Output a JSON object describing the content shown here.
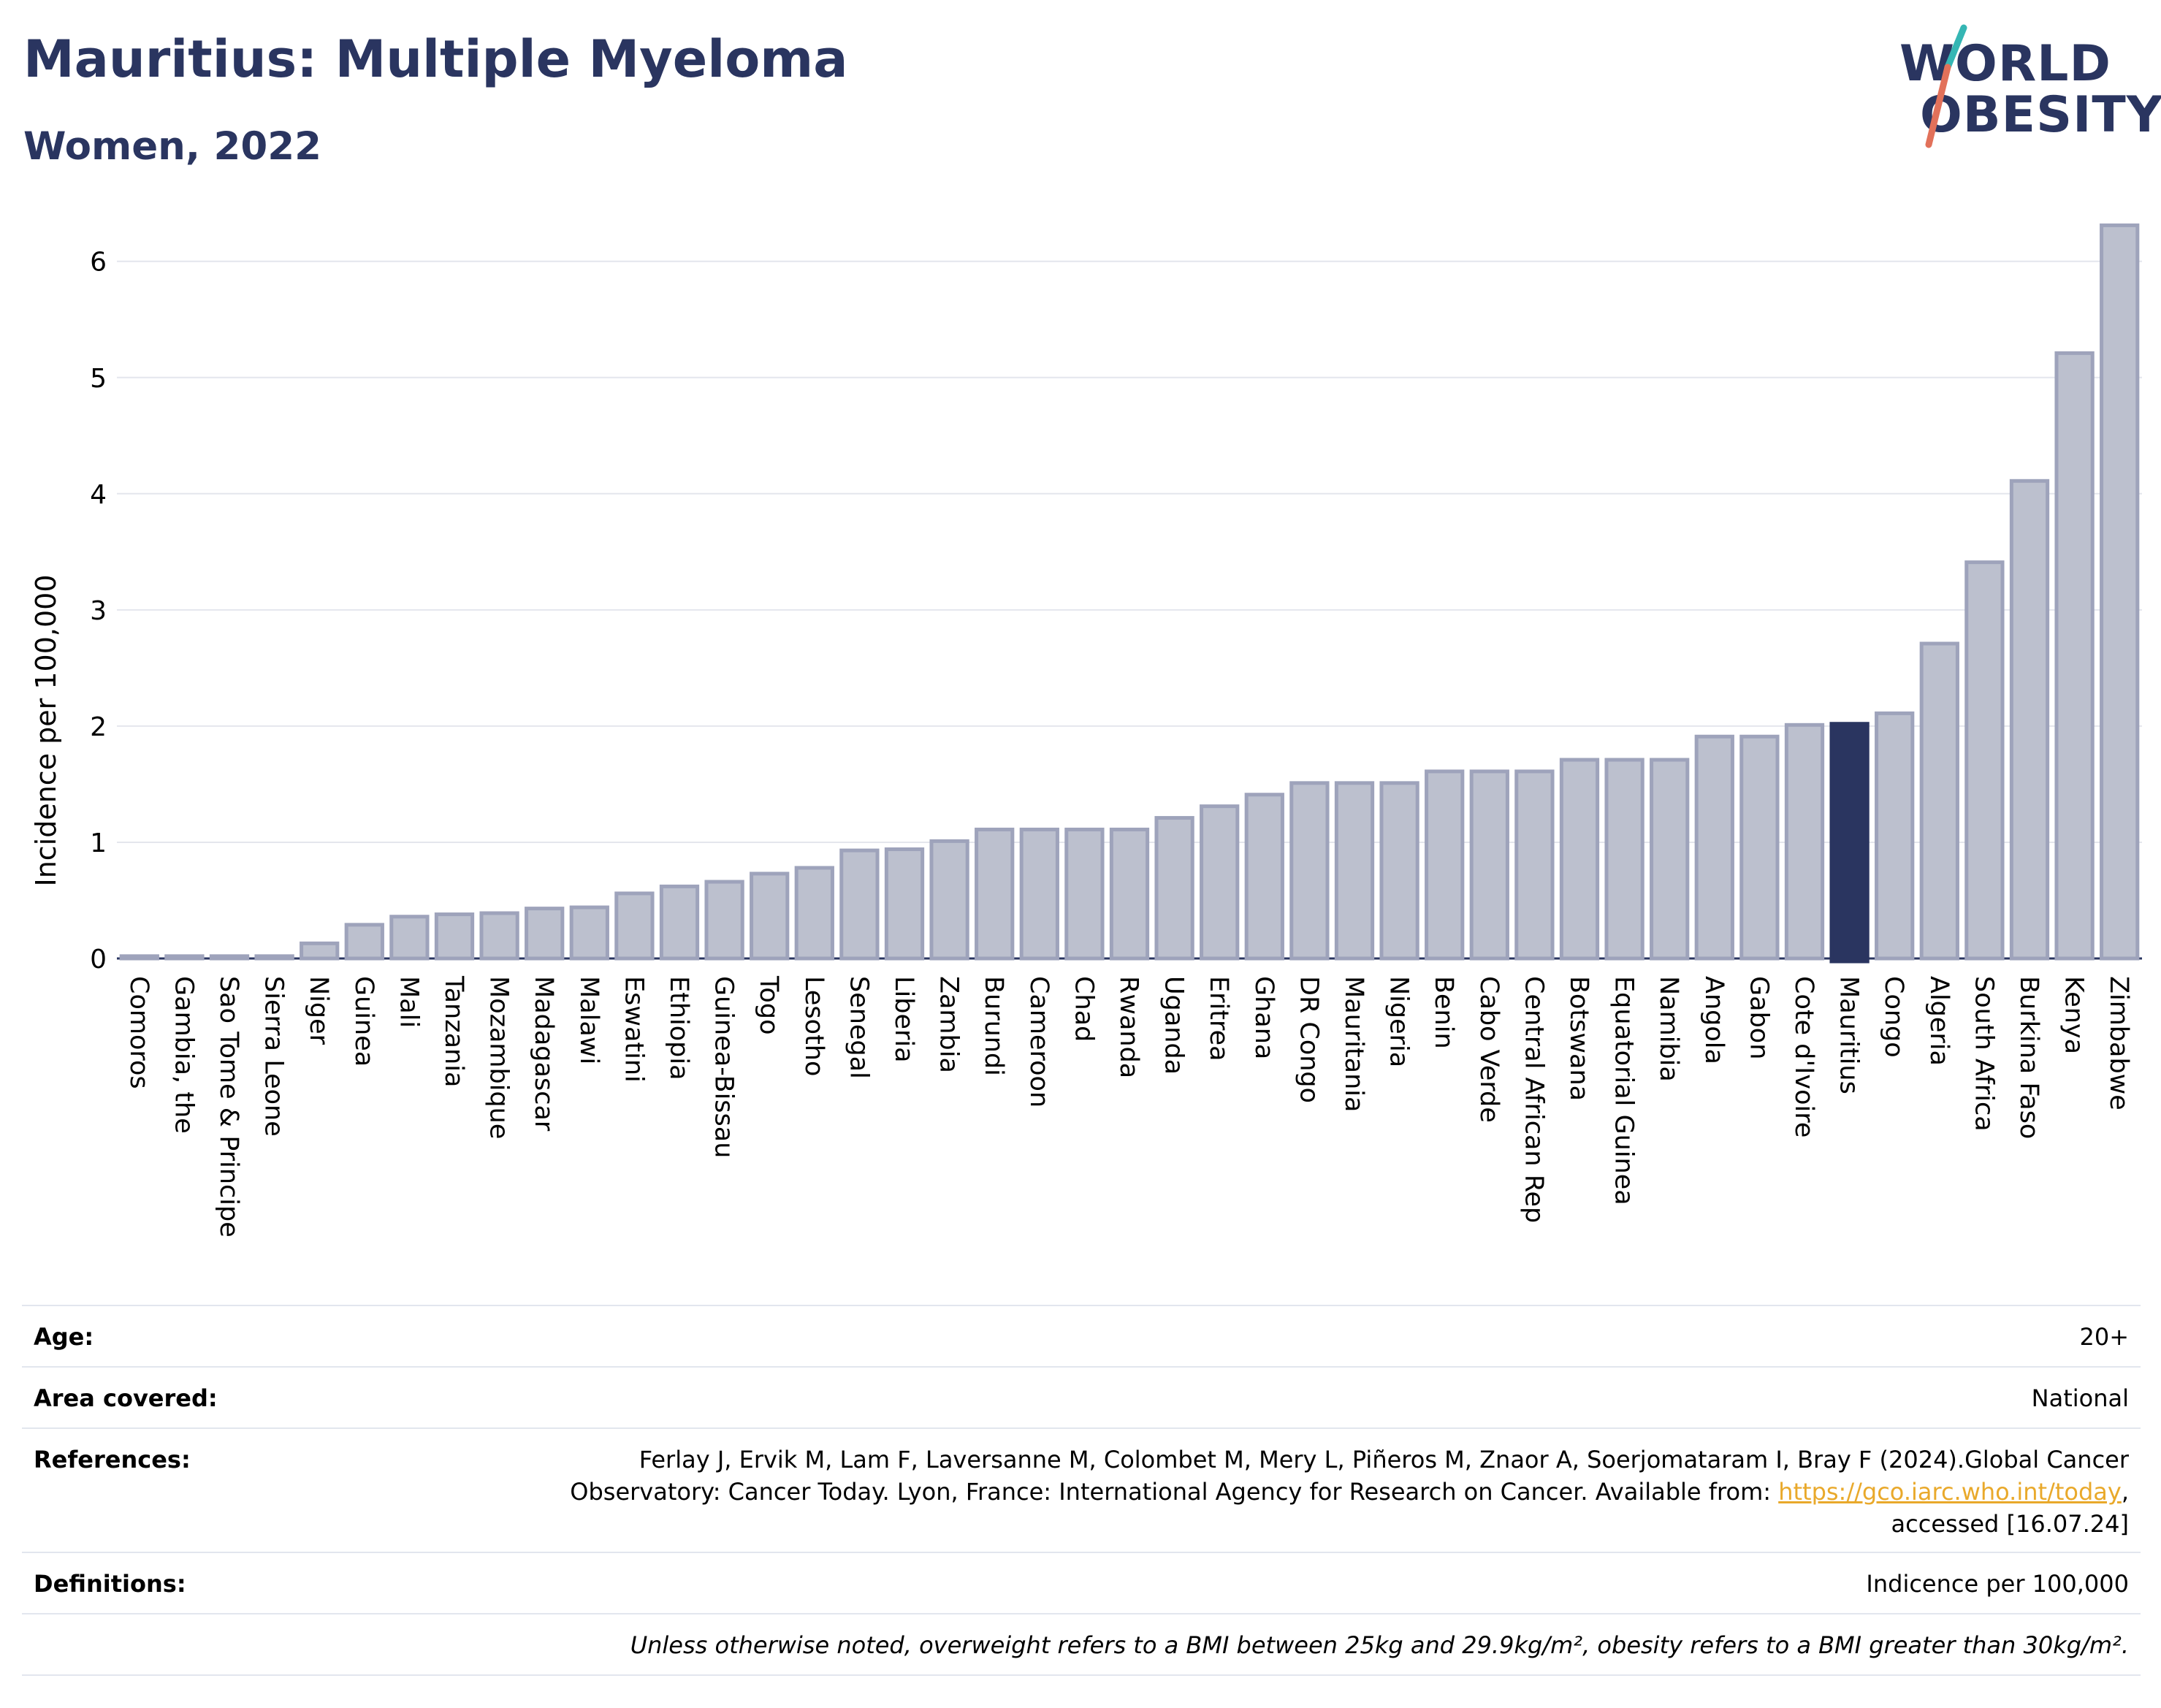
{
  "header": {
    "title": "Mauritius: Multiple Myeloma",
    "subtitle": "Women, 2022"
  },
  "logo": {
    "line1": "WORLD",
    "line2": "OBESITY",
    "slash_color_top": "#35b6b4",
    "slash_color_bottom": "#e2715a"
  },
  "colors": {
    "bar_fill": "#bcc0ce",
    "bar_stroke": "#9ea3bb",
    "highlight": "#2a3560",
    "grid": "#e4e6ed",
    "axis": "#2a3560"
  },
  "chart_data": {
    "type": "bar",
    "ylabel": "Incidence per 100,000",
    "xlabel": "",
    "ylim": [
      0,
      6.3
    ],
    "yticks": [
      0,
      1,
      2,
      3,
      4,
      5,
      6
    ],
    "grid": true,
    "highlight": "Mauritius",
    "categories": [
      "Comoros",
      "Gambia, the",
      "Sao Tome & Principe",
      "Sierra Leone",
      "Niger",
      "Guinea",
      "Mali",
      "Tanzania",
      "Mozambique",
      "Madagascar",
      "Malawi",
      "Eswatini",
      "Ethiopia",
      "Guinea-Bissau",
      "Togo",
      "Lesotho",
      "Senegal",
      "Liberia",
      "Zambia",
      "Burundi",
      "Cameroon",
      "Chad",
      "Rwanda",
      "Uganda",
      "Eritrea",
      "Ghana",
      "DR Congo",
      "Mauritania",
      "Nigeria",
      "Benin",
      "Cabo Verde",
      "Central African Rep",
      "Botswana",
      "Equatorial Guinea",
      "Namibia",
      "Angola",
      "Gabon",
      "Cote d'Ivoire",
      "Mauritius",
      "Congo",
      "Algeria",
      "South Africa",
      "Burkina Faso",
      "Kenya",
      "Zimbabwe"
    ],
    "values": [
      0.02,
      0.02,
      0.02,
      0.02,
      0.13,
      0.29,
      0.36,
      0.38,
      0.39,
      0.43,
      0.44,
      0.56,
      0.62,
      0.66,
      0.73,
      0.78,
      0.93,
      0.94,
      1.01,
      1.11,
      1.11,
      1.11,
      1.11,
      1.21,
      1.31,
      1.41,
      1.51,
      1.51,
      1.51,
      1.61,
      1.61,
      1.61,
      1.71,
      1.71,
      1.71,
      1.91,
      1.91,
      2.01,
      2.02,
      2.11,
      2.71,
      3.41,
      4.11,
      5.21,
      6.31
    ]
  },
  "info": {
    "age_label": "Age:",
    "age_value": "20+",
    "area_label": "Area covered:",
    "area_value": "National",
    "references_label": "References:",
    "references_line1": "Ferlay J, Ervik M, Lam F, Laversanne M, Colombet M, Mery L, Piñeros M, Znaor A, Soerjomataram I, Bray F (2024).Global Cancer",
    "references_line2_pre": "Observatory: Cancer Today. Lyon, France: International Agency for Research on Cancer. Available from:",
    "references_link": "https://gco.iarc.who.int/today",
    "references_line2_post": ",",
    "references_line3": "accessed [16.07.24]",
    "definitions_label": "Definitions:",
    "definitions_value": "Indicence per 100,000",
    "note": "Unless otherwise noted, overweight refers to a BMI between 25kg and 29.9kg/m², obesity refers to a BMI greater than 30kg/m²."
  }
}
